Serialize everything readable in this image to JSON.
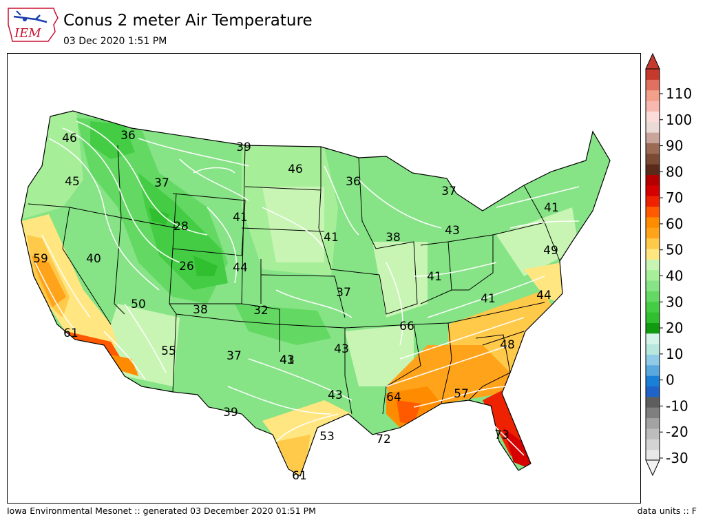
{
  "header": {
    "title": "Conus 2 meter Air Temperature",
    "subtitle": "03 Dec 2020 1:51 PM",
    "logo_text": "IEM",
    "logo_color": "#c8102e"
  },
  "footer": {
    "left": "Iowa Environmental Mesonet :: generated 03 December 2020 01:51 PM",
    "right": "data units :: F"
  },
  "colorbar": {
    "ticks": [
      "110",
      "100",
      "90",
      "80",
      "70",
      "60",
      "50",
      "40",
      "30",
      "20",
      "10",
      "0",
      "-10",
      "-20",
      "-30"
    ],
    "colors": [
      "#e8e8e8",
      "#d4d4d4",
      "#bdbdbd",
      "#a3a3a3",
      "#7f7f7f",
      "#5e5e5e",
      "#1f63c9",
      "#1a7fd6",
      "#5aa9de",
      "#8fcbe6",
      "#b6e7dd",
      "#d6f3ea",
      "#0f9a0f",
      "#2fbf2f",
      "#45cc45",
      "#63d963",
      "#86e386",
      "#a7ee99",
      "#c8f5b4",
      "#ffe680",
      "#ffc94a",
      "#ffa31a",
      "#ff8c00",
      "#ff5a00",
      "#ee2200",
      "#d60000",
      "#b40000",
      "#5a2a1a",
      "#7a4a35",
      "#9a6a55",
      "#c9a49a",
      "#eadbd6",
      "#fbdcd8",
      "#f7b8b0",
      "#f3a08a",
      "#e07060",
      "#c63a2e"
    ]
  },
  "map": {
    "point_labels": [
      "46",
      "36",
      "39",
      "46",
      "36",
      "37",
      "45",
      "37",
      "41",
      "28",
      "41",
      "38",
      "43",
      "41",
      "59",
      "40",
      "26",
      "44",
      "41",
      "49",
      "50",
      "38",
      "32",
      "37",
      "41",
      "44",
      "61",
      "66",
      "48",
      "55",
      "37",
      "41",
      "43",
      "43",
      "57",
      "64",
      "43",
      "39",
      "53",
      "72",
      "73",
      "61"
    ]
  }
}
